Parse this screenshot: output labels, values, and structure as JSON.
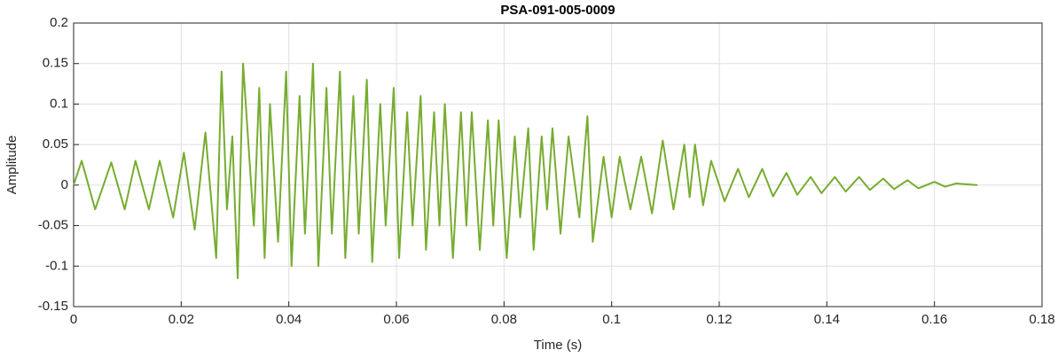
{
  "chart_data": {
    "type": "line",
    "title": "PSA-091-005-0009",
    "x_label": "Time (s)",
    "y_label": "Amplitude",
    "xlim": [
      0,
      0.18
    ],
    "xticks": [
      0,
      0.02,
      0.04,
      0.06,
      0.08,
      0.1,
      0.12,
      0.14,
      0.16,
      0.18
    ],
    "ylim": [
      -0.15,
      0.2
    ],
    "yticks": [
      -0.15,
      -0.1,
      -0.05,
      0,
      0.05,
      0.1,
      0.15,
      0.2
    ],
    "grid": true,
    "series": [
      {
        "color": "#77ac30",
        "x": [
          0,
          0.0015,
          0.004,
          0.007,
          0.0095,
          0.0115,
          0.014,
          0.016,
          0.0185,
          0.0205,
          0.0225,
          0.0245,
          0.0265,
          0.0275,
          0.0285,
          0.0295,
          0.0305,
          0.0315,
          0.0335,
          0.0345,
          0.0355,
          0.0365,
          0.038,
          0.0395,
          0.0405,
          0.042,
          0.043,
          0.0445,
          0.0455,
          0.047,
          0.048,
          0.0495,
          0.0505,
          0.052,
          0.053,
          0.0545,
          0.0555,
          0.057,
          0.058,
          0.0595,
          0.0605,
          0.062,
          0.063,
          0.0645,
          0.0655,
          0.067,
          0.068,
          0.069,
          0.0705,
          0.072,
          0.073,
          0.074,
          0.0755,
          0.077,
          0.078,
          0.079,
          0.0805,
          0.082,
          0.083,
          0.0845,
          0.0855,
          0.087,
          0.088,
          0.089,
          0.0905,
          0.092,
          0.094,
          0.0955,
          0.0965,
          0.0985,
          0.1,
          0.1015,
          0.1035,
          0.1055,
          0.1075,
          0.1095,
          0.1115,
          0.1135,
          0.1145,
          0.1155,
          0.117,
          0.1185,
          0.121,
          0.1235,
          0.1255,
          0.128,
          0.13,
          0.1325,
          0.1345,
          0.137,
          0.139,
          0.1415,
          0.1435,
          0.146,
          0.148,
          0.1505,
          0.1525,
          0.155,
          0.157,
          0.16,
          0.162,
          0.164,
          0.168
        ],
        "values": [
          0,
          0.03,
          -0.03,
          0.028,
          -0.03,
          0.03,
          -0.03,
          0.03,
          -0.04,
          0.04,
          -0.055,
          0.065,
          -0.09,
          0.14,
          -0.03,
          0.06,
          -0.115,
          0.15,
          -0.05,
          0.12,
          -0.09,
          0.1,
          -0.07,
          0.14,
          -0.1,
          0.11,
          -0.06,
          0.15,
          -0.1,
          0.12,
          -0.06,
          0.14,
          -0.09,
          0.11,
          -0.06,
          0.13,
          -0.095,
          0.1,
          -0.05,
          0.12,
          -0.09,
          0.09,
          -0.05,
          0.11,
          -0.08,
          0.09,
          -0.05,
          0.1,
          -0.09,
          0.09,
          -0.05,
          0.09,
          -0.08,
          0.08,
          -0.05,
          0.08,
          -0.09,
          0.06,
          -0.04,
          0.07,
          -0.08,
          0.06,
          -0.03,
          0.07,
          -0.06,
          0.06,
          -0.04,
          0.085,
          -0.07,
          0.035,
          -0.04,
          0.035,
          -0.03,
          0.035,
          -0.035,
          0.055,
          -0.03,
          0.05,
          -0.015,
          0.05,
          -0.025,
          0.03,
          -0.02,
          0.02,
          -0.015,
          0.02,
          -0.014,
          0.015,
          -0.012,
          0.01,
          -0.01,
          0.01,
          -0.008,
          0.01,
          -0.006,
          0.008,
          -0.005,
          0.006,
          -0.004,
          0.004,
          -0.002,
          0.002,
          0
        ]
      }
    ]
  }
}
